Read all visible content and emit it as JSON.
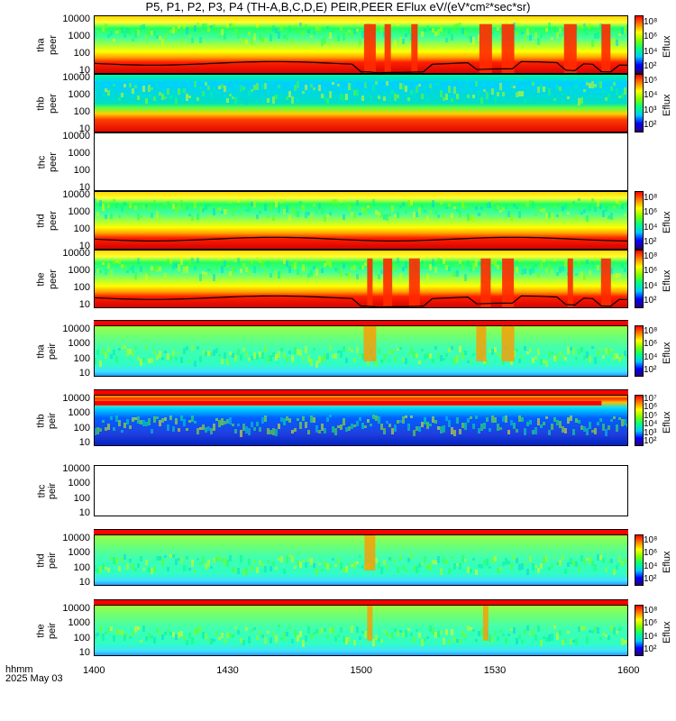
{
  "title": "P5, P1, P2, P3, P4 (TH-A,B,C,D,E) PEIR,PEER EFlux eV/(eV*cm²*sec*sr)",
  "footer": {
    "label1": "hhmm",
    "label2": "2025 May 03"
  },
  "chart_data": {
    "type": "heatmap",
    "x_ticks": [
      "1400",
      "1430",
      "1500",
      "1530",
      "1600"
    ],
    "xlim": [
      "1400",
      "1600"
    ],
    "y_scale": "log",
    "ylim": [
      10,
      10000
    ],
    "y_ticks": [
      "10000",
      "1000",
      "100",
      "10"
    ],
    "colorbar_label": "Eflux",
    "panels": [
      {
        "probe": "tha",
        "species": "peer",
        "ylabel": "tha peer",
        "colorbar_ticks": [
          "10⁸",
          "10⁶",
          "10⁴",
          "10²"
        ],
        "empty": false,
        "has_black_line": true,
        "bursts_hhmm": [
          "1502",
          "1506",
          "1512",
          "1528",
          "1533",
          "1547",
          "1555"
        ]
      },
      {
        "probe": "thb",
        "species": "peer",
        "ylabel": "thb peer",
        "colorbar_ticks": [
          "10⁵",
          "10⁴",
          "10³",
          "10²"
        ],
        "empty": false,
        "has_black_line": false,
        "bursts_hhmm": []
      },
      {
        "probe": "thc",
        "species": "peer",
        "ylabel": "thc peer",
        "colorbar_ticks": [],
        "empty": true,
        "has_black_line": false,
        "bursts_hhmm": []
      },
      {
        "probe": "thd",
        "species": "peer",
        "ylabel": "thd peer",
        "colorbar_ticks": [
          "10⁸",
          "10⁶",
          "10⁴",
          "10²"
        ],
        "empty": false,
        "has_black_line": true,
        "bursts_hhmm": []
      },
      {
        "probe": "the",
        "species": "peer",
        "ylabel": "the peer",
        "colorbar_ticks": [
          "10⁸",
          "10⁶",
          "10⁴",
          "10²"
        ],
        "empty": false,
        "has_black_line": true,
        "bursts_hhmm": [
          "1502",
          "1506",
          "1512",
          "1528",
          "1533",
          "1547",
          "1555"
        ]
      },
      {
        "probe": "tha",
        "species": "peir",
        "ylabel": "tha peir",
        "colorbar_ticks": [
          "10⁸",
          "10⁶",
          "10⁴",
          "10²"
        ],
        "empty": false,
        "has_black_line": false,
        "bursts_hhmm": [
          "1502",
          "1527",
          "1533"
        ]
      },
      {
        "probe": "thb",
        "species": "peir",
        "ylabel": "thb peir",
        "colorbar_ticks": [
          "10⁷",
          "10⁶",
          "10⁵",
          "10⁴",
          "10³",
          "10²"
        ],
        "empty": false,
        "has_black_line": false,
        "bursts_hhmm": []
      },
      {
        "probe": "thc",
        "species": "peir",
        "ylabel": "thc peir",
        "colorbar_ticks": [],
        "empty": true,
        "has_black_line": false,
        "bursts_hhmm": []
      },
      {
        "probe": "thd",
        "species": "peir",
        "ylabel": "thd peir",
        "colorbar_ticks": [
          "10⁸",
          "10⁶",
          "10⁴",
          "10²"
        ],
        "empty": false,
        "has_black_line": false,
        "bursts_hhmm": [
          "1502"
        ]
      },
      {
        "probe": "the",
        "species": "peir",
        "ylabel": "the peir",
        "colorbar_ticks": [
          "10⁸",
          "10⁶",
          "10⁴",
          "10²"
        ],
        "empty": false,
        "has_black_line": false,
        "bursts_hhmm": [
          "1502",
          "1528"
        ]
      }
    ]
  }
}
